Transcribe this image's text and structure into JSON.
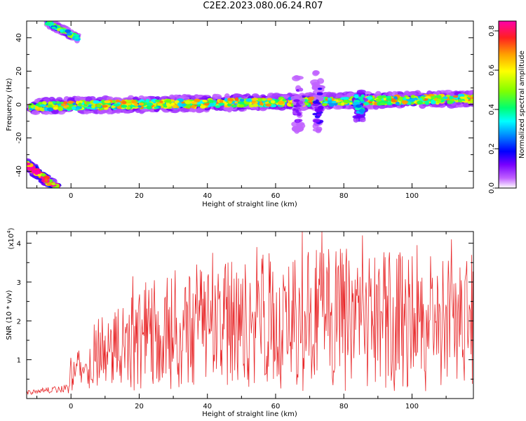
{
  "title": "C2E2.2023.080.06.24.R07",
  "chart_data": [
    {
      "type": "heatmap",
      "xlabel": "Height of straight line (km)",
      "ylabel": "Frequency (Hz)",
      "xlim": [
        -13,
        118
      ],
      "ylim": [
        -50,
        50
      ],
      "xticks": [
        0,
        20,
        40,
        60,
        80,
        100
      ],
      "yticks": [
        -40,
        -20,
        0,
        20,
        40
      ],
      "colorbar": {
        "label": "Normalized spectral amplitude",
        "range": [
          0.0,
          0.85
        ],
        "ticks": [
          0.0,
          0.2,
          0.4,
          0.6,
          0.8
        ],
        "tick_labels": [
          "0.0",
          "0.2",
          "0.4",
          "0.6",
          "0.8"
        ]
      },
      "features": [
        {
          "name": "main",
          "x_range": [
            -12,
            118
          ],
          "center_hz_start": -1,
          "center_hz_end": 3.5,
          "half_width_hz": 4,
          "amplitude": 0.45
        },
        {
          "name": "upper-left",
          "x_range": [
            -7,
            2
          ],
          "center_hz_start": 49,
          "center_hz_end": 40,
          "half_width_hz": 2,
          "amplitude": 0.35
        },
        {
          "name": "lower-left",
          "x_range": [
            -13,
            -4
          ],
          "center_hz_start": -36,
          "center_hz_end": -50,
          "half_width_hz": 3,
          "amplitude": 0.7
        },
        {
          "name": "vertical-streak",
          "x_range": [
            65.5,
            67.5
          ],
          "center_hz_start": 0,
          "center_hz_end": 0,
          "half_width_hz": 18,
          "amplitude": 0.1
        },
        {
          "name": "vertical-streak",
          "x_range": [
            71.5,
            73.5
          ],
          "center_hz_start": 0,
          "center_hz_end": 0,
          "half_width_hz": 20,
          "amplitude": 0.15
        },
        {
          "name": "vertical-streak",
          "x_range": [
            83.5,
            86
          ],
          "center_hz_start": 0,
          "center_hz_end": 0,
          "half_width_hz": 10,
          "amplitude": 0.35
        }
      ]
    },
    {
      "type": "line",
      "xlabel": "Height of straight line (km)",
      "ylabel": "SNR (10 * v/v)",
      "y_multiplier": "(x10",
      "y_multiplier_exp": "4",
      "y_multiplier_close": ")",
      "xlim": [
        -13,
        118
      ],
      "ylim": [
        0,
        4.3
      ],
      "xticks": [
        0,
        20,
        40,
        60,
        80,
        100
      ],
      "yticks": [
        1,
        2,
        3,
        4
      ],
      "color": "#e8282a",
      "envelope": [
        {
          "x": -13,
          "y": 0.18
        },
        {
          "x": -1,
          "y": 0.3
        },
        {
          "x": 0,
          "y": 1.2
        },
        {
          "x": 5,
          "y": 1.5
        },
        {
          "x": 8,
          "y": 2.2
        },
        {
          "x": 17,
          "y": 2.6
        },
        {
          "x": 20,
          "y": 3.0
        },
        {
          "x": 40,
          "y": 3.4
        },
        {
          "x": 60,
          "y": 3.8
        },
        {
          "x": 80,
          "y": 3.9
        },
        {
          "x": 118,
          "y": 3.6
        }
      ],
      "peaks": [
        {
          "x": 18.2,
          "y": 3.15
        },
        {
          "x": 30.5,
          "y": 3.3
        },
        {
          "x": 36.8,
          "y": 3.45
        },
        {
          "x": 41.5,
          "y": 3.75
        },
        {
          "x": 54.5,
          "y": 3.9
        },
        {
          "x": 67.8,
          "y": 4.3
        },
        {
          "x": 73.5,
          "y": 4.3
        },
        {
          "x": 79.5,
          "y": 3.75
        },
        {
          "x": 85.5,
          "y": 4.2
        },
        {
          "x": 101.5,
          "y": 3.95
        },
        {
          "x": 111.5,
          "y": 4.1
        },
        {
          "x": 117.5,
          "y": 3.7
        }
      ]
    }
  ]
}
